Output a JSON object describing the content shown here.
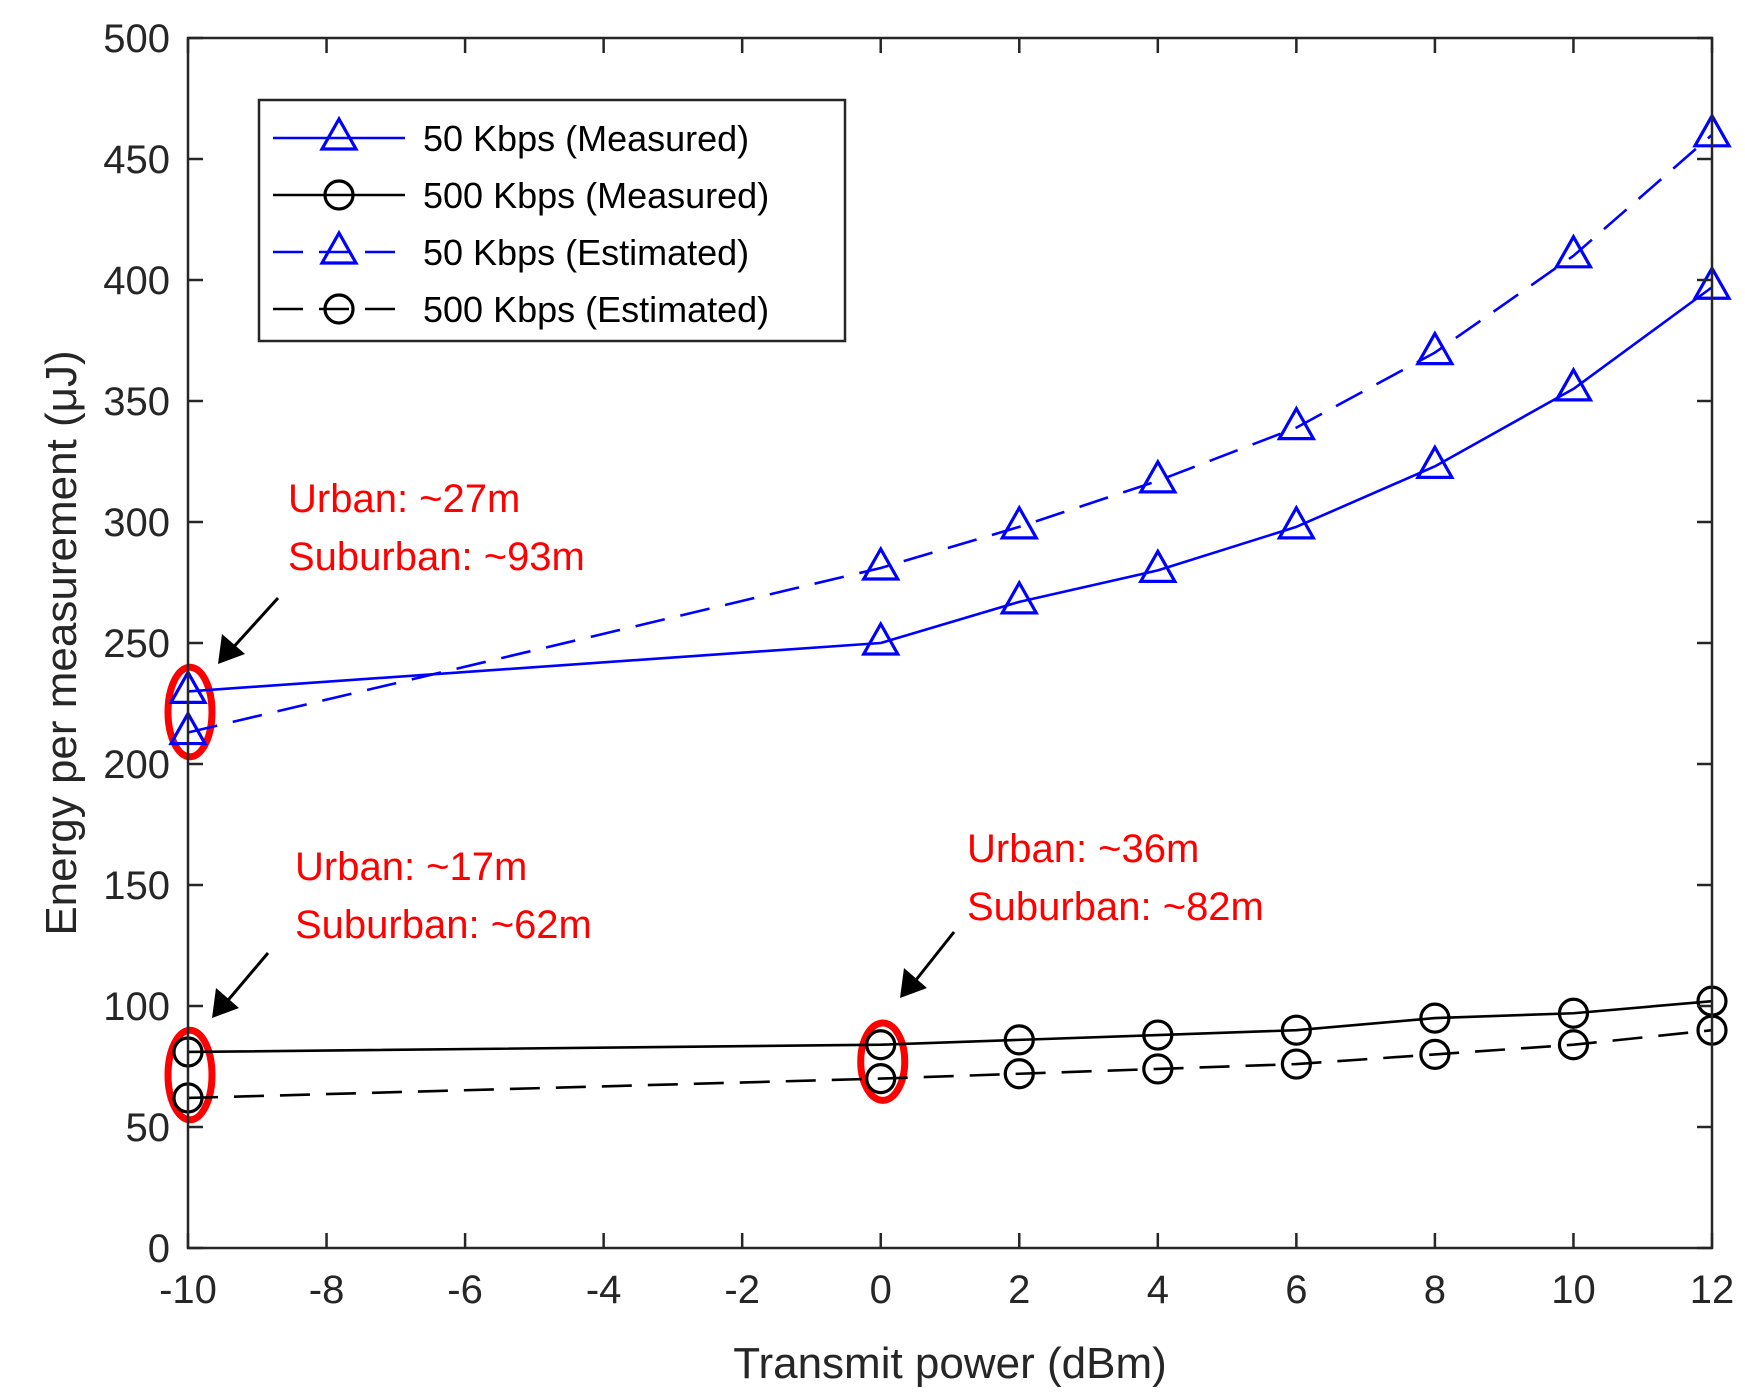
{
  "chart_data": {
    "type": "line",
    "title": "",
    "xlabel": "Transmit power (dBm)",
    "ylabel": "Energy per measurement (μJ)",
    "xlim": [
      -10,
      12
    ],
    "ylim": [
      0,
      500
    ],
    "xticks": [
      "-10",
      "-8",
      "-6",
      "-4",
      "-2",
      "0",
      "2",
      "4",
      "6",
      "8",
      "10",
      "12"
    ],
    "yticks": [
      "0",
      "50",
      "100",
      "150",
      "200",
      "250",
      "300",
      "350",
      "400",
      "450",
      "500"
    ],
    "grid": false,
    "legend_position": "top-left",
    "series": [
      {
        "name": "50 Kbps (Measured)",
        "color": "#0000ff",
        "style": "solid",
        "marker": "triangle",
        "x": [
          -10,
          0,
          2,
          4,
          6,
          8,
          10,
          12
        ],
        "y": [
          230,
          250,
          267,
          280,
          298,
          323,
          355,
          397
        ]
      },
      {
        "name": "500 Kbps (Measured)",
        "color": "#000000",
        "style": "solid",
        "marker": "circle",
        "x": [
          -10,
          0,
          2,
          4,
          6,
          8,
          10,
          12
        ],
        "y": [
          81,
          84,
          86,
          88,
          90,
          95,
          97,
          102
        ]
      },
      {
        "name": "50 Kbps (Estimated)",
        "color": "#0000ff",
        "style": "dashed",
        "marker": "triangle",
        "x": [
          -10,
          0,
          2,
          4,
          6,
          8,
          10,
          12
        ],
        "y": [
          213,
          281,
          298,
          317,
          339,
          370,
          410,
          460
        ]
      },
      {
        "name": "500 Kbps (Estimated)",
        "color": "#000000",
        "style": "dashed",
        "marker": "circle",
        "x": [
          -10,
          0,
          2,
          4,
          6,
          8,
          10,
          12
        ],
        "y": [
          62,
          70,
          72,
          74,
          76,
          80,
          84,
          90
        ]
      }
    ],
    "annotations": [
      {
        "lines": [
          "Urban: ~27m",
          "Suburban: ~93m"
        ],
        "target_x": -10,
        "target_y_range": [
          203,
          240
        ],
        "color": "#ff0000"
      },
      {
        "lines": [
          "Urban: ~17m",
          "Suburban: ~62m"
        ],
        "target_x": -10,
        "target_y_range": [
          53,
          90
        ],
        "color": "#ff0000"
      },
      {
        "lines": [
          "Urban: ~36m",
          "Suburban: ~82m"
        ],
        "target_x": 0,
        "target_y_range": [
          61,
          93
        ],
        "color": "#ff0000"
      }
    ]
  }
}
